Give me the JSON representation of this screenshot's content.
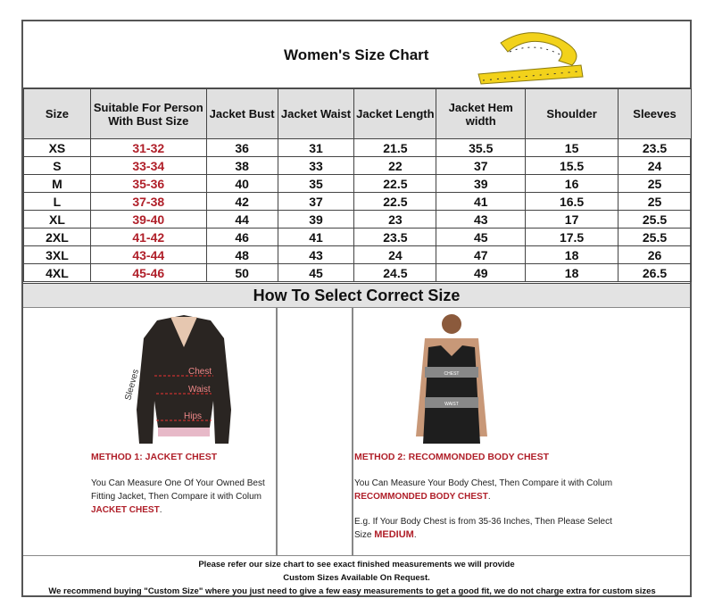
{
  "title": "Women's Size Chart",
  "table": {
    "headers": [
      "Size",
      "Suitable For Person With Bust Size",
      "Jacket Bust",
      "Jacket Waist",
      "Jacket Length",
      "Jacket Hem width",
      "Shoulder",
      "Sleeves"
    ],
    "rows": [
      [
        "XS",
        "31-32",
        "36",
        "31",
        "21.5",
        "35.5",
        "15",
        "23.5"
      ],
      [
        "S",
        "33-34",
        "38",
        "33",
        "22",
        "37",
        "15.5",
        "24"
      ],
      [
        "M",
        "35-36",
        "40",
        "35",
        "22.5",
        "39",
        "16",
        "25"
      ],
      [
        "L",
        "37-38",
        "42",
        "37",
        "22.5",
        "41",
        "16.5",
        "25"
      ],
      [
        "XL",
        "39-40",
        "44",
        "39",
        "23",
        "43",
        "17",
        "25.5"
      ],
      [
        "2XL",
        "41-42",
        "46",
        "41",
        "23.5",
        "45",
        "17.5",
        "25.5"
      ],
      [
        "3XL",
        "43-44",
        "48",
        "43",
        "24",
        "47",
        "18",
        "26"
      ],
      [
        "4XL",
        "45-46",
        "50",
        "45",
        "24.5",
        "49",
        "18",
        "26.5"
      ]
    ]
  },
  "howto": "How To Select Correct Size",
  "jacket_labels": {
    "sleeves": "Sleeves",
    "chest": "Chest",
    "waist": "Waist",
    "hips": "Hips"
  },
  "tank_labels": {
    "chest": "CHEST",
    "waist": "WAIST"
  },
  "method1": {
    "heading": "METHOD 1: JACKET CHEST",
    "text": "You Can Measure One Of Your Owned Best Fitting Jacket, Then Compare it with Colum",
    "highlight": "JACKET CHEST",
    "end": "."
  },
  "method2": {
    "heading": "METHOD 2: RECOMMONDED BODY CHEST",
    "text": "You Can Measure Your Body Chest, Then Compare it with Colum",
    "highlight": "RECOMMONDED BODY CHEST",
    "end": ".",
    "example": "E.g. If Your Body Chest is from 35-36 Inches, Then Please Select Size",
    "example_highlight": "MEDIUM",
    "example_end": "."
  },
  "footer": [
    "Please refer our size chart to see exact finished measurements we will provide",
    "Custom Sizes Available On Request.",
    "We recommend buying \"Custom Size\" where you just need to give a few easy measurements to get a good fit, we do not charge extra for custom sizes"
  ],
  "colors": {
    "accent_red": "#b0202a",
    "header_gray": "#e0e0e0",
    "tape_yellow": "#f2d21b"
  }
}
